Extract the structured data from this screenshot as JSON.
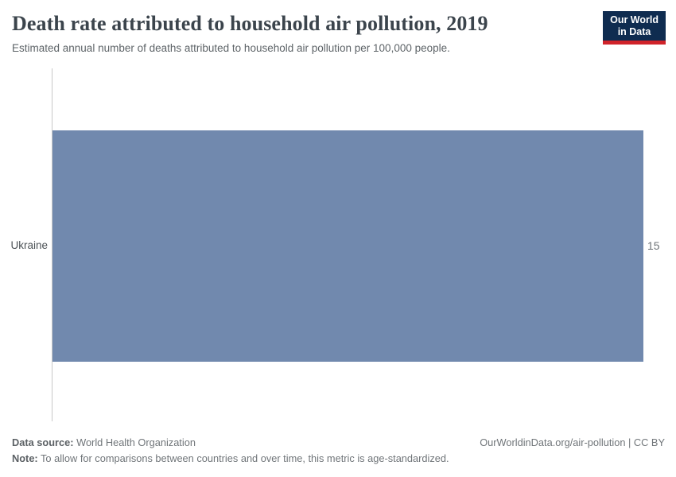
{
  "header": {
    "title": "Death rate attributed to household air pollution, 2019",
    "subtitle": "Estimated annual number of deaths attributed to household air pollution per 100,000 people.",
    "logo": {
      "line1": "Our World",
      "line2": "in Data"
    }
  },
  "chart_data": {
    "type": "bar",
    "orientation": "horizontal",
    "categories": [
      "Ukraine"
    ],
    "values": [
      15
    ],
    "value_labels": [
      "15"
    ],
    "title": "Death rate attributed to household air pollution, 2019",
    "xlabel": "",
    "ylabel": "",
    "xlim": [
      0,
      15
    ],
    "grid": false,
    "legend": false,
    "bar_color": "#7189ae",
    "axis_color": "#c8c8c8"
  },
  "footer": {
    "datasource_label": "Data source:",
    "datasource_value": "World Health Organization",
    "note_label": "Note:",
    "note_value": "To allow for comparisons between countries and over time, this metric is age-standardized.",
    "license": "OurWorldinData.org/air-pollution | CC BY"
  },
  "colors": {
    "bar": "#7189ae",
    "logo_background": "#0f2c50",
    "logo_accent_red": "#d0232a",
    "title_text": "#3b444c",
    "axis_line": "#c8c8c8"
  }
}
